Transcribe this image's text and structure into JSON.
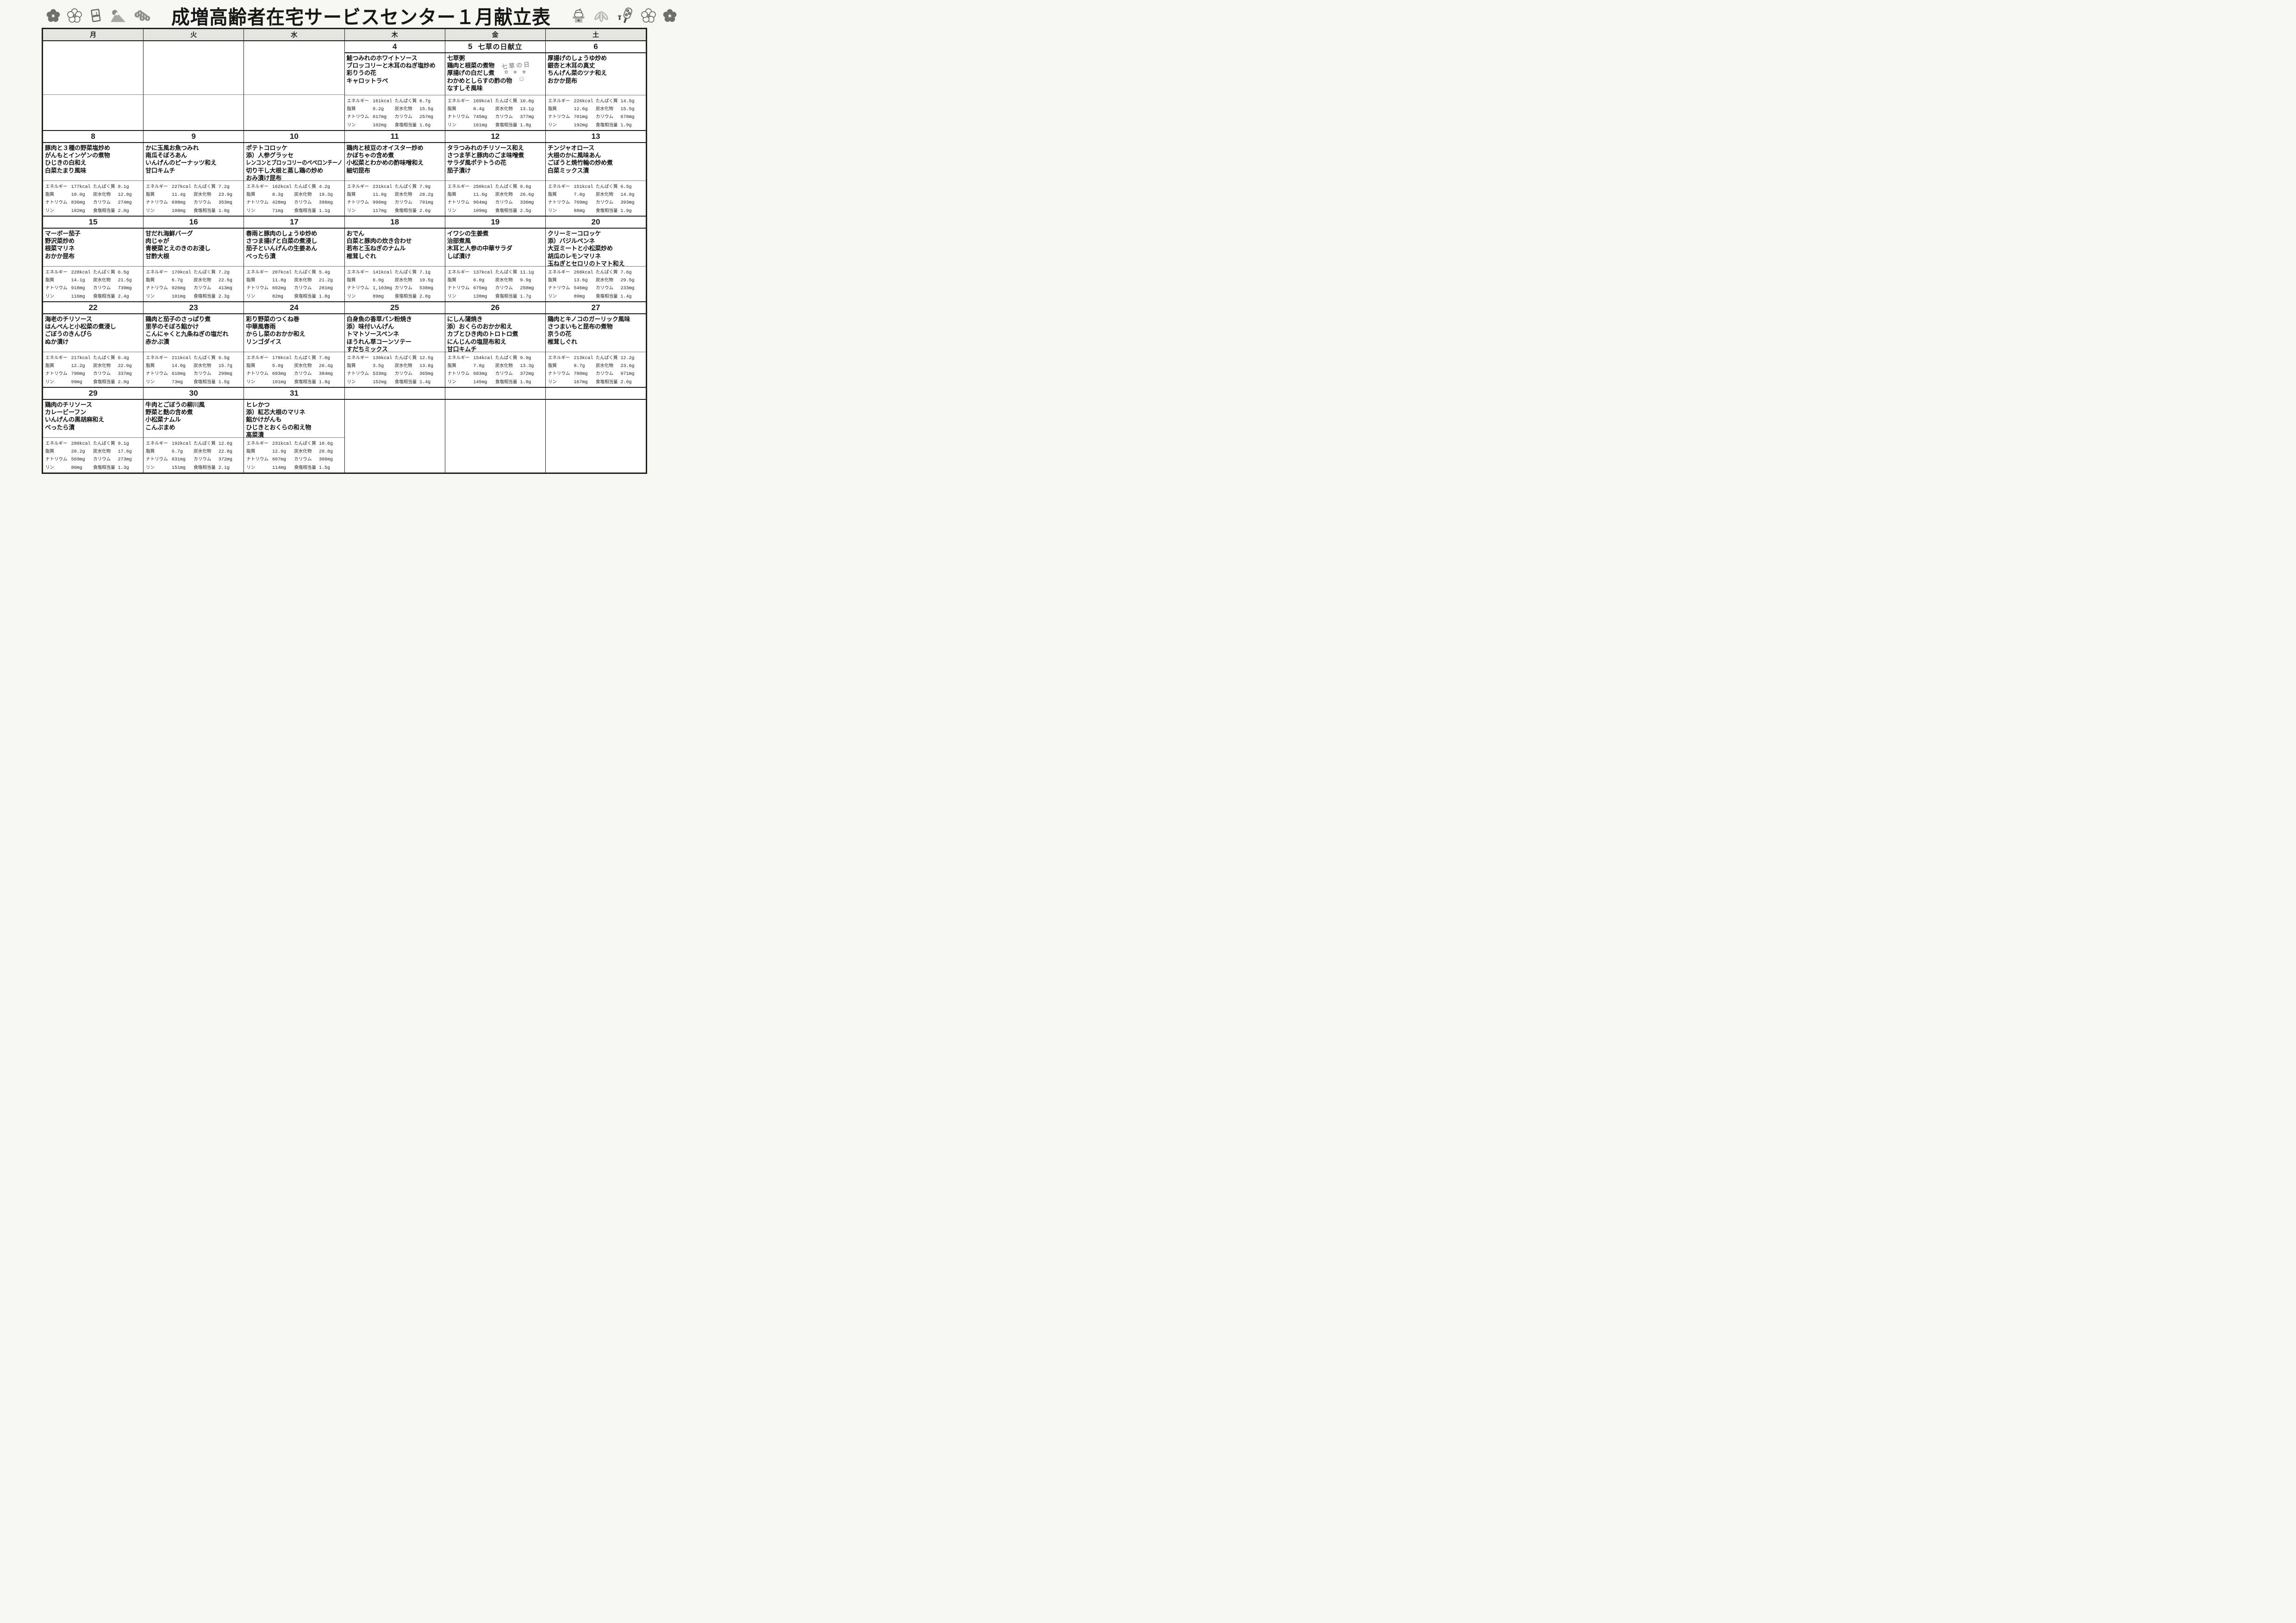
{
  "title": "成増高齢者在宅サービスセンター１月献立表",
  "weekday_headers": [
    "月",
    "火",
    "水",
    "木",
    "金",
    "土"
  ],
  "nutrition_labels": {
    "energy": "エネルギー",
    "protein": "たんぱく質",
    "fat": "脂質",
    "carbs": "炭水化物",
    "sodium": "ナトリウム",
    "potassium": "カリウム",
    "phosphorus": "リン",
    "salt": "食塩相当量"
  },
  "decorations": {
    "left_icons": [
      "plum-blossom-dark-icon",
      "plum-blossom-light-icon",
      "new-year-card-icon",
      "mount-fuji-icon",
      "pine-icon"
    ],
    "right_icons": [
      "kagami-mochi-icon",
      "bamboo-leaves-icon",
      "hagoita-battledore-icon",
      "plum-blossom-light-icon",
      "plum-blossom-dark-icon"
    ]
  },
  "weeks": [
    {
      "cells": [
        {
          "empty": true
        },
        {
          "empty": true
        },
        {
          "empty": true
        },
        {
          "day": "4",
          "menu": [
            "鮭つみれのホワイトソース",
            "ブロッコリーと木耳のねぎ塩炒め",
            "彩りうの花",
            "キャロットラペ"
          ],
          "nutrition": {
            "energy": "161kcal",
            "protein": "6.7g",
            "fat": "9.2g",
            "carbs": "15.5g",
            "sodium": "617mg",
            "potassium": "257mg",
            "phosphorus": "102mg",
            "salt": "1.6g"
          }
        },
        {
          "day": "5",
          "day_note": "七草の日献立",
          "decoration": {
            "text": "七草の日",
            "flowers": "✿ ❀ ✾",
            "faces": "☺ ☺"
          },
          "menu": [
            "七草粥",
            "鶏肉と根菜の煮物",
            "厚揚げの白だし煮",
            "わかめとしらすの酢の物",
            "なすしそ風味"
          ],
          "nutrition": {
            "energy": "169kcal",
            "protein": "10.8g",
            "fat": "8.4g",
            "carbs": "13.1g",
            "sodium": "745mg",
            "potassium": "377mg",
            "phosphorus": "161mg",
            "salt": "1.8g"
          }
        },
        {
          "day": "6",
          "menu": [
            "厚揚げのしょうゆ炒め",
            "銀杏と木耳の真丈",
            "ちんげん菜のツナ和え",
            "おかか昆布"
          ],
          "nutrition": {
            "energy": "226kcal",
            "protein": "14.5g",
            "fat": "12.6g",
            "carbs": "15.5g",
            "sodium": "701mg",
            "potassium": "678mg",
            "phosphorus": "192mg",
            "salt": "1.9g"
          }
        }
      ]
    },
    {
      "cells": [
        {
          "day": "8",
          "menu": [
            "豚肉と３種の野菜塩炒め",
            "がんもとインゲンの煮物",
            "ひじきの白和え",
            "白菜たまり風味"
          ],
          "nutrition": {
            "energy": "177kcal",
            "protein": "8.1g",
            "fat": "10.0g",
            "carbs": "12.8g",
            "sodium": "836mg",
            "potassium": "274mg",
            "phosphorus": "102mg",
            "salt": "2.0g"
          }
        },
        {
          "day": "9",
          "menu": [
            "かに玉風お魚つみれ",
            "南瓜そぼろあん",
            "いんげんのピーナッツ和え",
            "甘口キムチ"
          ],
          "nutrition": {
            "energy": "227kcal",
            "protein": "7.2g",
            "fat": "11.4g",
            "carbs": "23.9g",
            "sodium": "698mg",
            "potassium": "353mg",
            "phosphorus": "108mg",
            "salt": "1.8g"
          }
        },
        {
          "day": "10",
          "menu": [
            "ポテトコロッケ",
            "添）人参グラッセ",
            "レンコンとブロッコリーのペペロンチーノ",
            "切り干し大根と蒸し鶏の炒め",
            "おみ漬け昆布"
          ],
          "nutrition": {
            "energy": "162kcal",
            "protein": "4.2g",
            "fat": "8.3g",
            "carbs": "19.3g",
            "sodium": "428mg",
            "potassium": "396mg",
            "phosphorus": "71mg",
            "salt": "1.1g"
          }
        },
        {
          "day": "11",
          "menu": [
            "鶏肉と枝豆のオイスター炒め",
            "かぼちゃの含め煮",
            "小松菜とわかめの酢味噌和え",
            "細切昆布"
          ],
          "nutrition": {
            "energy": "231kcal",
            "protein": "7.9g",
            "fat": "11.0g",
            "carbs": "28.2g",
            "sodium": "996mg",
            "potassium": "791mg",
            "phosphorus": "117mg",
            "salt": "2.6g"
          }
        },
        {
          "day": "12",
          "menu": [
            "タラつみれのチリソース和え",
            "さつま芋と豚肉のごま味噌煮",
            "サラダ風ポテトうの花",
            "茄子漬け"
          ],
          "nutrition": {
            "energy": "250kcal",
            "protein": "9.6g",
            "fat": "11.6g",
            "carbs": "26.6g",
            "sodium": "964mg",
            "potassium": "336mg",
            "phosphorus": "109mg",
            "salt": "2.5g"
          }
        },
        {
          "day": "13",
          "menu": [
            "チンジャオロース",
            "大根のかに風味あん",
            "ごぼうと焼竹輪の炒め煮",
            "白菜ミックス漬"
          ],
          "nutrition": {
            "energy": "151kcal",
            "protein": "6.5g",
            "fat": "7.8g",
            "carbs": "14.9g",
            "sodium": "769mg",
            "potassium": "393mg",
            "phosphorus": "88mg",
            "salt": "1.9g"
          }
        }
      ]
    },
    {
      "cells": [
        {
          "day": "15",
          "menu": [
            "マーボー茄子",
            "野沢菜炒め",
            "根菜マリネ",
            "おかか昆布"
          ],
          "nutrition": {
            "energy": "228kcal",
            "protein": "6.5g",
            "fat": "14.1g",
            "carbs": "21.5g",
            "sodium": "918mg",
            "potassium": "739mg",
            "phosphorus": "116mg",
            "salt": "2.4g"
          }
        },
        {
          "day": "16",
          "menu": [
            "甘だれ海鮮バーグ",
            "肉じゃが",
            "青梗菜とえのきのお浸し",
            "甘酢大根"
          ],
          "nutrition": {
            "energy": "170kcal",
            "protein": "7.2g",
            "fat": "6.7g",
            "carbs": "22.5g",
            "sodium": "926mg",
            "potassium": "413mg",
            "phosphorus": "101mg",
            "salt": "2.3g"
          }
        },
        {
          "day": "17",
          "menu": [
            "春雨と豚肉のしょうゆ炒め",
            "さつま揚げと白菜の煮浸し",
            "茄子といんげんの生姜あん",
            "べったら漬"
          ],
          "nutrition": {
            "energy": "207kcal",
            "protein": "5.4g",
            "fat": "11.8g",
            "carbs": "21.2g",
            "sodium": "692mg",
            "potassium": "281mg",
            "phosphorus": "82mg",
            "salt": "1.8g"
          }
        },
        {
          "day": "18",
          "menu": [
            "おでん",
            "白菜と豚肉の炊き合わせ",
            "若布と玉ねぎのナムル",
            "椎茸しぐれ"
          ],
          "nutrition": {
            "energy": "141kcal",
            "protein": "7.1g",
            "fat": "6.0g",
            "carbs": "19.5g",
            "sodium": "1,103mg",
            "potassium": "538mg",
            "phosphorus": "89mg",
            "salt": "2.8g"
          }
        },
        {
          "day": "19",
          "menu": [
            "イワシの生姜煮",
            "治部煮風",
            "木耳と人参の中華サラダ",
            "しば漬け"
          ],
          "nutrition": {
            "energy": "137kcal",
            "protein": "11.1g",
            "fat": "6.0g",
            "carbs": "9.9g",
            "sodium": "675mg",
            "potassium": "258mg",
            "phosphorus": "138mg",
            "salt": "1.7g"
          }
        },
        {
          "day": "20",
          "menu": [
            "クリーミーコロッケ",
            "添）バジルペンネ",
            "大豆ミートと小松菜炒め",
            "胡瓜のレモンマリネ",
            "玉ねぎとセロリのトマト和え"
          ],
          "nutrition": {
            "energy": "268kcal",
            "protein": "7.6g",
            "fat": "13.6g",
            "carbs": "29.5g",
            "sodium": "546mg",
            "potassium": "233mg",
            "phosphorus": "89mg",
            "salt": "1.4g"
          }
        }
      ]
    },
    {
      "cells": [
        {
          "day": "22",
          "menu": [
            "海老のチリソース",
            "はんぺんと小松菜の煮浸し",
            "ごぼうのきんぴら",
            "ぬか漬け"
          ],
          "nutrition": {
            "energy": "217kcal",
            "protein": "6.4g",
            "fat": "12.2g",
            "carbs": "22.0g",
            "sodium": "790mg",
            "potassium": "337mg",
            "phosphorus": "99mg",
            "salt": "2.0g"
          }
        },
        {
          "day": "23",
          "menu": [
            "鶏肉と茄子のさっぱり煮",
            "里芋のそぼろ餡かけ",
            "こんにゃくと九条ねぎの塩だれ",
            "赤かぶ漬"
          ],
          "nutrition": {
            "energy": "211kcal",
            "protein": "6.5g",
            "fat": "14.0g",
            "carbs": "15.7g",
            "sodium": "610mg",
            "potassium": "299mg",
            "phosphorus": "73mg",
            "salt": "1.5g"
          }
        },
        {
          "day": "24",
          "menu": [
            "彩り野菜のつくね巻",
            "中華風春雨",
            "からし菜のおかか和え",
            "リンゴダイス"
          ],
          "nutrition": {
            "energy": "178kcal",
            "protein": "7.0g",
            "fat": "5.0g",
            "carbs": "26.4g",
            "sodium": "693mg",
            "potassium": "384mg",
            "phosphorus": "101mg",
            "salt": "1.8g"
          }
        },
        {
          "day": "25",
          "menu": [
            "白身魚の香草パン粉焼き",
            "添）味付いんげん",
            "トマトソースペンネ",
            "ほうれん草コーンソテー",
            "すだちミックス"
          ],
          "nutrition": {
            "energy": "130kcal",
            "protein": "12.5g",
            "fat": "3.5g",
            "carbs": "13.8g",
            "sodium": "533mg",
            "potassium": "365mg",
            "phosphorus": "152mg",
            "salt": "1.4g"
          }
        },
        {
          "day": "26",
          "menu": [
            "にしん蒲焼き",
            "添）おくらのおかか和え",
            "カブとひき肉のトロトロ煮",
            "にんじんの塩昆布和え",
            "甘口キムチ"
          ],
          "nutrition": {
            "energy": "154kcal",
            "protein": "9.9g",
            "fat": "7.8g",
            "carbs": "13.3g",
            "sodium": "683mg",
            "potassium": "372mg",
            "phosphorus": "145mg",
            "salt": "1.9g"
          }
        },
        {
          "day": "27",
          "menu": [
            "鶏肉とキノコのガーリック風味",
            "さつまいもと昆布の煮物",
            "京うの花",
            "椎茸しぐれ"
          ],
          "nutrition": {
            "energy": "213kcal",
            "protein": "12.2g",
            "fat": "8.7g",
            "carbs": "23.6g",
            "sodium": "780mg",
            "potassium": "971mg",
            "phosphorus": "167mg",
            "salt": "2.0g"
          }
        }
      ]
    },
    {
      "cells": [
        {
          "day": "29",
          "menu": [
            "鶏肉のチリソース",
            "カレービーフン",
            "いんげんの黒胡麻和え",
            "べったら漬"
          ],
          "nutrition": {
            "energy": "280kcal",
            "protein": "9.1g",
            "fat": "20.2g",
            "carbs": "17.6g",
            "sodium": "569mg",
            "potassium": "273mg",
            "phosphorus": "86mg",
            "salt": "1.3g"
          }
        },
        {
          "day": "30",
          "menu": [
            "牛肉とごぼうの柳川風",
            "野菜と麩の含め煮",
            "小松菜ナムル",
            "こんぶまめ"
          ],
          "nutrition": {
            "energy": "192kcal",
            "protein": "12.6g",
            "fat": "6.7g",
            "carbs": "22.8g",
            "sodium": "831mg",
            "potassium": "372mg",
            "phosphorus": "151mg",
            "salt": "2.1g"
          }
        },
        {
          "day": "31",
          "menu": [
            "ヒレかつ",
            "添）紅芯大根のマリネ",
            "餡かけがんも",
            "ひじきとおくらの和え物",
            "高菜漬"
          ],
          "nutrition": {
            "energy": "231kcal",
            "protein": "10.6g",
            "fat": "12.9g",
            "carbs": "20.8g",
            "sodium": "607mg",
            "potassium": "306mg",
            "phosphorus": "114mg",
            "salt": "1.5g"
          }
        },
        {
          "empty": true
        },
        {
          "empty": true
        },
        {
          "empty": true
        }
      ]
    }
  ]
}
